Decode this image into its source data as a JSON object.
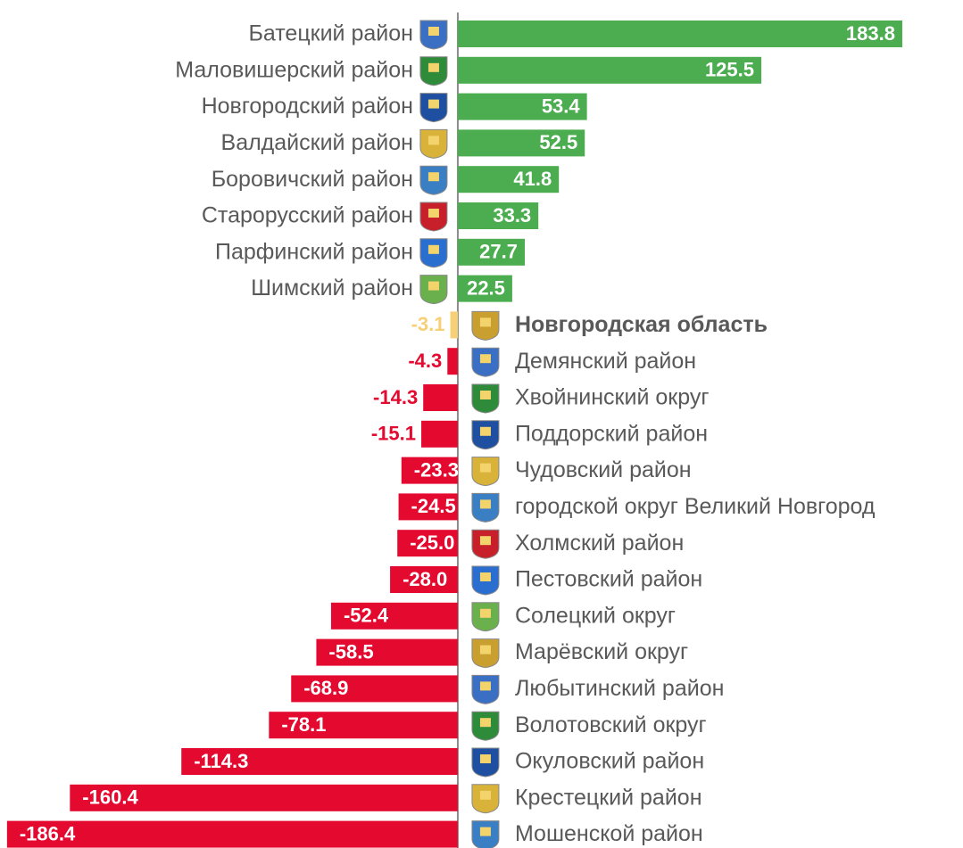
{
  "chart_data": {
    "type": "bar",
    "orientation": "horizontal",
    "categories": [
      "Батецкий район",
      "Маловишерский район",
      "Новгородский район",
      "Валдайский район",
      "Боровичский район",
      "Старорусский район",
      "Парфинский район",
      "Шимский район",
      "Новгородская область",
      "Демянский район",
      "Хвойнинский округ",
      "Поддорский район",
      "Чудовский район",
      "городской округ  Великий Новгород",
      "Холмский район",
      "Пестовский район",
      "Солецкий округ",
      "Марёвский округ",
      "Любытинский район",
      "Волотовский округ",
      "Окуловский район",
      "Крестецкий район",
      "Мошенской район"
    ],
    "values": [
      183.8,
      125.5,
      53.4,
      52.5,
      41.8,
      33.3,
      27.7,
      22.5,
      -3.1,
      -4.3,
      -14.3,
      -15.1,
      -23.3,
      -24.5,
      -25.0,
      -28.0,
      -52.4,
      -58.5,
      -68.9,
      -78.1,
      -114.3,
      -160.4,
      -186.4
    ],
    "value_labels": [
      "183.8",
      "125.5",
      "53.4",
      "52.5",
      "41.8",
      "33.3",
      "27.7",
      "22.5",
      "-3.1",
      "-4.3",
      "-14.3",
      "-15.1",
      "-23.3",
      "-24.5",
      "-25.0",
      "-28.0",
      "-52.4",
      "-58.5",
      "-68.9",
      "-78.1",
      "-114.3",
      "-160.4",
      "-186.4"
    ],
    "colors": [
      "#4cad50",
      "#4cad50",
      "#4cad50",
      "#4cad50",
      "#4cad50",
      "#4cad50",
      "#4cad50",
      "#4cad50",
      "#f7cf76",
      "#e3092f",
      "#e3092f",
      "#e3092f",
      "#e3092f",
      "#e3092f",
      "#e3092f",
      "#e3092f",
      "#e3092f",
      "#e3092f",
      "#e3092f",
      "#e3092f",
      "#e3092f",
      "#e3092f",
      "#e3092f"
    ],
    "highlight": 8,
    "xlim": [
      -189.3,
      208.9
    ]
  }
}
